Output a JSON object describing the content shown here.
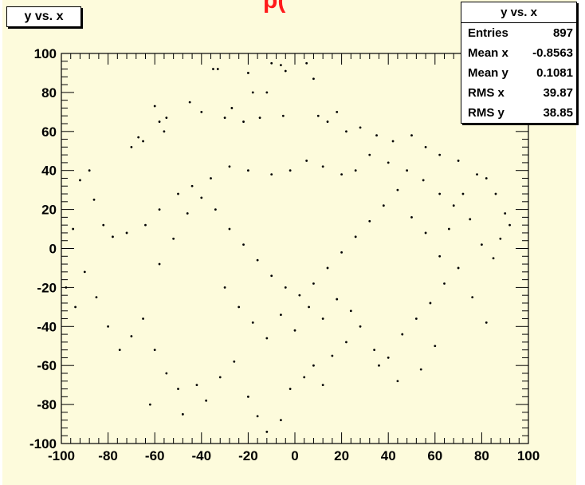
{
  "top_title_fragment": "p(",
  "title_box_label": "y vs. x",
  "stats": {
    "title": "y vs. x",
    "rows": [
      {
        "label": "Entries",
        "value": "897"
      },
      {
        "label": "Mean x",
        "value": "-0.8563"
      },
      {
        "label": "Mean y",
        "value": "0.1081"
      },
      {
        "label": "RMS x",
        "value": "39.87"
      },
      {
        "label": "RMS y",
        "value": "38.85"
      }
    ]
  },
  "colors": {
    "pad_background": "#fdfbdc",
    "title_fragment": "#ff1a1a",
    "markers": "#000000"
  },
  "chart_data": {
    "type": "scatter",
    "title": "y vs. x",
    "xlim": [
      -100,
      100
    ],
    "ylim": [
      -100,
      100
    ],
    "x_ticks": [
      -100,
      -80,
      -60,
      -40,
      -20,
      0,
      20,
      40,
      60,
      80,
      100
    ],
    "y_ticks": [
      -100,
      -80,
      -60,
      -40,
      -20,
      0,
      20,
      40,
      60,
      80,
      100
    ],
    "grid": false,
    "legend": "none",
    "points": [
      [
        -60,
        73
      ],
      [
        -58,
        65
      ],
      [
        -55,
        67
      ],
      [
        -56,
        60
      ],
      [
        -67,
        57
      ],
      [
        -65,
        55
      ],
      [
        -70,
        52
      ],
      [
        -45,
        75
      ],
      [
        -40,
        70
      ],
      [
        -35,
        92
      ],
      [
        -33,
        92
      ],
      [
        -20,
        90
      ],
      [
        -10,
        95
      ],
      [
        -6,
        94
      ],
      [
        -4,
        91
      ],
      [
        5,
        95
      ],
      [
        8,
        87
      ],
      [
        -12,
        80
      ],
      [
        -18,
        80
      ],
      [
        -27,
        72
      ],
      [
        -30,
        67
      ],
      [
        -22,
        65
      ],
      [
        -15,
        67
      ],
      [
        -5,
        68
      ],
      [
        10,
        68
      ],
      [
        14,
        65
      ],
      [
        18,
        70
      ],
      [
        22,
        60
      ],
      [
        28,
        62
      ],
      [
        35,
        58
      ],
      [
        42,
        55
      ],
      [
        50,
        58
      ],
      [
        56,
        52
      ],
      [
        62,
        48
      ],
      [
        70,
        45
      ],
      [
        78,
        38
      ],
      [
        82,
        36
      ],
      [
        86,
        28
      ],
      [
        90,
        18
      ],
      [
        88,
        5
      ],
      [
        92,
        12
      ],
      [
        85,
        -5
      ],
      [
        80,
        2
      ],
      [
        75,
        15
      ],
      [
        68,
        22
      ],
      [
        62,
        28
      ],
      [
        55,
        35
      ],
      [
        48,
        40
      ],
      [
        40,
        44
      ],
      [
        32,
        48
      ],
      [
        26,
        40
      ],
      [
        20,
        38
      ],
      [
        12,
        42
      ],
      [
        5,
        45
      ],
      [
        -2,
        40
      ],
      [
        -10,
        38
      ],
      [
        -20,
        40
      ],
      [
        -28,
        42
      ],
      [
        -36,
        36
      ],
      [
        -44,
        32
      ],
      [
        -50,
        28
      ],
      [
        -58,
        20
      ],
      [
        -64,
        12
      ],
      [
        -72,
        8
      ],
      [
        -78,
        6
      ],
      [
        -82,
        12
      ],
      [
        -86,
        25
      ],
      [
        -88,
        40
      ],
      [
        -92,
        35
      ],
      [
        -95,
        10
      ],
      [
        -98,
        -20
      ],
      [
        -94,
        -30
      ],
      [
        -90,
        -12
      ],
      [
        -85,
        -25
      ],
      [
        -80,
        -40
      ],
      [
        -75,
        -52
      ],
      [
        -70,
        -45
      ],
      [
        -65,
        -36
      ],
      [
        -60,
        -52
      ],
      [
        -55,
        -64
      ],
      [
        -50,
        -72
      ],
      [
        -48,
        -85
      ],
      [
        -42,
        -70
      ],
      [
        -38,
        -78
      ],
      [
        -32,
        -66
      ],
      [
        -26,
        -58
      ],
      [
        -20,
        -76
      ],
      [
        -16,
        -86
      ],
      [
        -12,
        -94
      ],
      [
        -6,
        -88
      ],
      [
        -2,
        -72
      ],
      [
        4,
        -66
      ],
      [
        8,
        -60
      ],
      [
        12,
        -70
      ],
      [
        16,
        -55
      ],
      [
        22,
        -48
      ],
      [
        28,
        -40
      ],
      [
        34,
        -52
      ],
      [
        40,
        -56
      ],
      [
        46,
        -44
      ],
      [
        52,
        -36
      ],
      [
        58,
        -28
      ],
      [
        64,
        -18
      ],
      [
        70,
        -10
      ],
      [
        76,
        -25
      ],
      [
        82,
        -38
      ],
      [
        60,
        -50
      ],
      [
        54,
        -62
      ],
      [
        44,
        -68
      ],
      [
        36,
        -60
      ],
      [
        -62,
        -80
      ],
      [
        -58,
        -8
      ],
      [
        -52,
        5
      ],
      [
        -46,
        18
      ],
      [
        -40,
        26
      ],
      [
        -34,
        20
      ],
      [
        -28,
        10
      ],
      [
        -22,
        2
      ],
      [
        -16,
        -6
      ],
      [
        -10,
        -14
      ],
      [
        -4,
        -20
      ],
      [
        2,
        -24
      ],
      [
        8,
        -18
      ],
      [
        14,
        -10
      ],
      [
        20,
        -2
      ],
      [
        26,
        6
      ],
      [
        32,
        14
      ],
      [
        38,
        22
      ],
      [
        44,
        30
      ],
      [
        50,
        16
      ],
      [
        56,
        8
      ],
      [
        62,
        -4
      ],
      [
        66,
        10
      ],
      [
        72,
        28
      ],
      [
        -30,
        -20
      ],
      [
        -24,
        -30
      ],
      [
        -18,
        -38
      ],
      [
        -12,
        -46
      ],
      [
        -6,
        -34
      ],
      [
        0,
        -42
      ],
      [
        6,
        -30
      ],
      [
        12,
        -36
      ],
      [
        18,
        -26
      ],
      [
        24,
        -32
      ]
    ]
  }
}
